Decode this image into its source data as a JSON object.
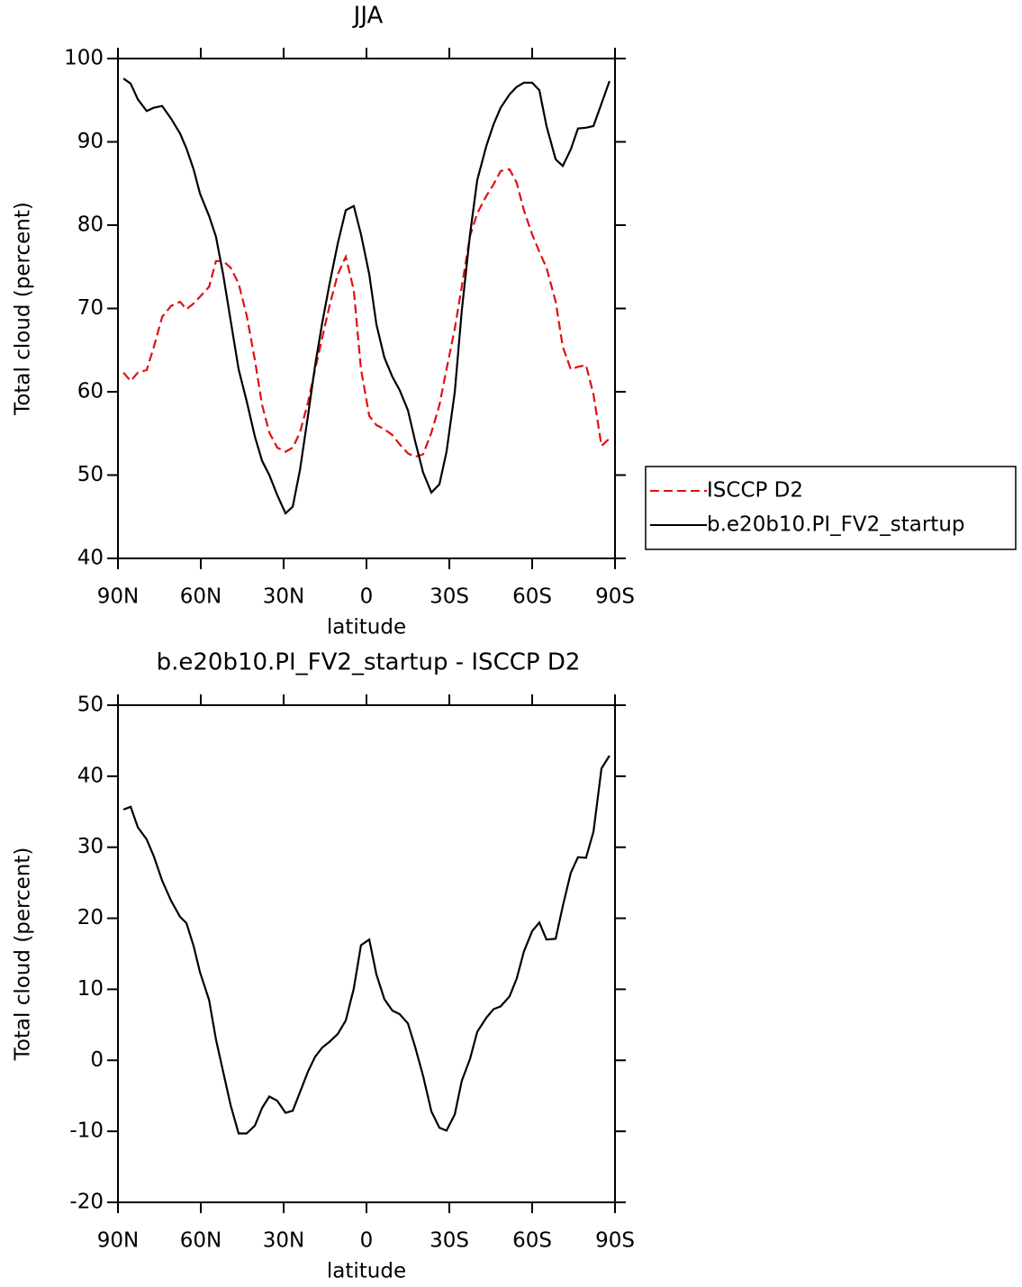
{
  "chart_data": [
    {
      "type": "line",
      "title": "JJA",
      "x_label": "latitude",
      "y_label": "Total cloud (percent)",
      "x": [
        88,
        85.4,
        82.8,
        79.6,
        77,
        74,
        70.8,
        67.5,
        65.2,
        62.6,
        60.3,
        57,
        54.5,
        51.9,
        49.2,
        46.3,
        43.4,
        40.4,
        37.8,
        35.2,
        32.3,
        29.3,
        26.7,
        24.1,
        21.2,
        18.6,
        16,
        13.4,
        10.4,
        7.5,
        4.6,
        2,
        -1,
        -3.6,
        -6.5,
        -9.4,
        -12,
        -15,
        -17.6,
        -20.5,
        -23.5,
        -26.4,
        -29,
        -32,
        -34.5,
        -37.5,
        -40.1,
        -43.4,
        -46,
        -48.6,
        -51.8,
        -54.4,
        -57,
        -60,
        -62.6,
        -65.2,
        -68.5,
        -71.1,
        -74,
        -76.6,
        -79.5,
        -82.2,
        -85.1,
        -88
      ],
      "series": [
        {
          "name": "ISCCP D2",
          "color": "#e01010",
          "linestyle": "dashed",
          "values": [
            62.3,
            61.3,
            62.3,
            62.6,
            65.4,
            69,
            70.3,
            70.8,
            69.9,
            70.6,
            71.4,
            72.6,
            75.7,
            75.7,
            74.9,
            73,
            69.2,
            63.8,
            58.4,
            55.1,
            53.3,
            52.8,
            53.3,
            55.1,
            58.7,
            62.7,
            66.5,
            70.3,
            74.1,
            76.2,
            72.2,
            62.7,
            57.1,
            56,
            55.5,
            54.8,
            53.7,
            52.6,
            52.2,
            52.5,
            55.1,
            58.4,
            62.7,
            67.6,
            72.6,
            78.7,
            81.4,
            83.5,
            84.9,
            86.5,
            86.7,
            85.1,
            81.8,
            78.9,
            76.8,
            74.9,
            70.8,
            65.4,
            62.7,
            63,
            63.2,
            59.7,
            53.5,
            54.4
          ]
        },
        {
          "name": "b.e20b10.PI_FV2_startup",
          "color": "#000000",
          "linestyle": "solid",
          "values": [
            97.6,
            97,
            95.1,
            93.7,
            94.1,
            94.3,
            92.8,
            91,
            89.2,
            86.7,
            83.8,
            81.1,
            78.6,
            74.1,
            68.6,
            62.7,
            58.9,
            54.6,
            51.7,
            50,
            47.6,
            45.4,
            46.2,
            50.6,
            57.1,
            63.2,
            68.3,
            72.9,
            77.8,
            81.8,
            82.3,
            78.9,
            74.1,
            68.1,
            64.1,
            61.8,
            60.2,
            57.8,
            54.1,
            50.3,
            47.9,
            48.9,
            52.8,
            60,
            69.7,
            78.9,
            85.4,
            89.5,
            92.1,
            94.1,
            95.7,
            96.6,
            97.1,
            97.1,
            96.2,
            91.9,
            87.9,
            87.1,
            89.1,
            91.6,
            91.7,
            91.9,
            94.6,
            97.3
          ]
        }
      ],
      "xlim": [
        90,
        -90
      ],
      "xticks": [
        {
          "value": 90,
          "label": "90N"
        },
        {
          "value": 60,
          "label": "60N"
        },
        {
          "value": 30,
          "label": "30N"
        },
        0,
        {
          "value": -30,
          "label": "30S"
        },
        {
          "value": -60,
          "label": "60S"
        },
        {
          "value": -90,
          "label": "90S"
        }
      ],
      "ylim": [
        40,
        100
      ],
      "yticks": [
        40,
        50,
        60,
        70,
        80,
        90,
        100
      ],
      "legend": "right"
    },
    {
      "type": "line",
      "title": "b.e20b10.PI_FV2_startup - ISCCP D2",
      "x_label": "latitude",
      "y_label": "Total cloud (percent)",
      "x": [
        88,
        85.4,
        82.8,
        79.6,
        77,
        74,
        70.8,
        67.5,
        65.2,
        62.6,
        60.3,
        57,
        54.5,
        51.9,
        49.2,
        46.3,
        43.4,
        40.4,
        37.8,
        35.2,
        32.3,
        29.3,
        26.7,
        24.1,
        21.2,
        18.6,
        16,
        13.4,
        10.4,
        7.5,
        4.6,
        2,
        -1,
        -3.6,
        -6.5,
        -9.4,
        -12,
        -15,
        -17.6,
        -20.5,
        -23.5,
        -26.4,
        -29,
        -32,
        -34.5,
        -37.5,
        -40.1,
        -43.4,
        -46,
        -48.6,
        -51.8,
        -54.4,
        -57,
        -60,
        -62.6,
        -65.2,
        -68.5,
        -71.1,
        -74,
        -76.6,
        -79.5,
        -82.2,
        -85.1,
        -88
      ],
      "series": [
        {
          "color": "#000000",
          "linestyle": "solid",
          "values": [
            35.3,
            35.7,
            32.8,
            31.1,
            28.7,
            25.3,
            22.5,
            20.2,
            19.3,
            16.1,
            12.4,
            8.5,
            2.9,
            -1.6,
            -6.3,
            -10.3,
            -10.3,
            -9.2,
            -6.7,
            -5.1,
            -5.7,
            -7.4,
            -7.1,
            -4.5,
            -1.6,
            0.5,
            1.8,
            2.6,
            3.7,
            5.6,
            10.1,
            16.2,
            17,
            12.1,
            8.6,
            7,
            6.5,
            5.2,
            1.9,
            -2.2,
            -7.2,
            -9.5,
            -9.9,
            -7.6,
            -2.9,
            0.2,
            4,
            6,
            7.2,
            7.6,
            9,
            11.5,
            15.3,
            18.2,
            19.4,
            17,
            17.1,
            21.7,
            26.4,
            28.6,
            28.5,
            32.2,
            41.1,
            42.9
          ]
        }
      ],
      "xlim": [
        90,
        -90
      ],
      "xticks": [
        {
          "value": 90,
          "label": "90N"
        },
        {
          "value": 60,
          "label": "60N"
        },
        {
          "value": 30,
          "label": "30N"
        },
        0,
        {
          "value": -30,
          "label": "30S"
        },
        {
          "value": -60,
          "label": "60S"
        },
        {
          "value": -90,
          "label": "90S"
        }
      ],
      "ylim": [
        -20,
        50
      ],
      "yticks": [
        -20,
        -10,
        0,
        10,
        20,
        30,
        40,
        50
      ]
    }
  ]
}
